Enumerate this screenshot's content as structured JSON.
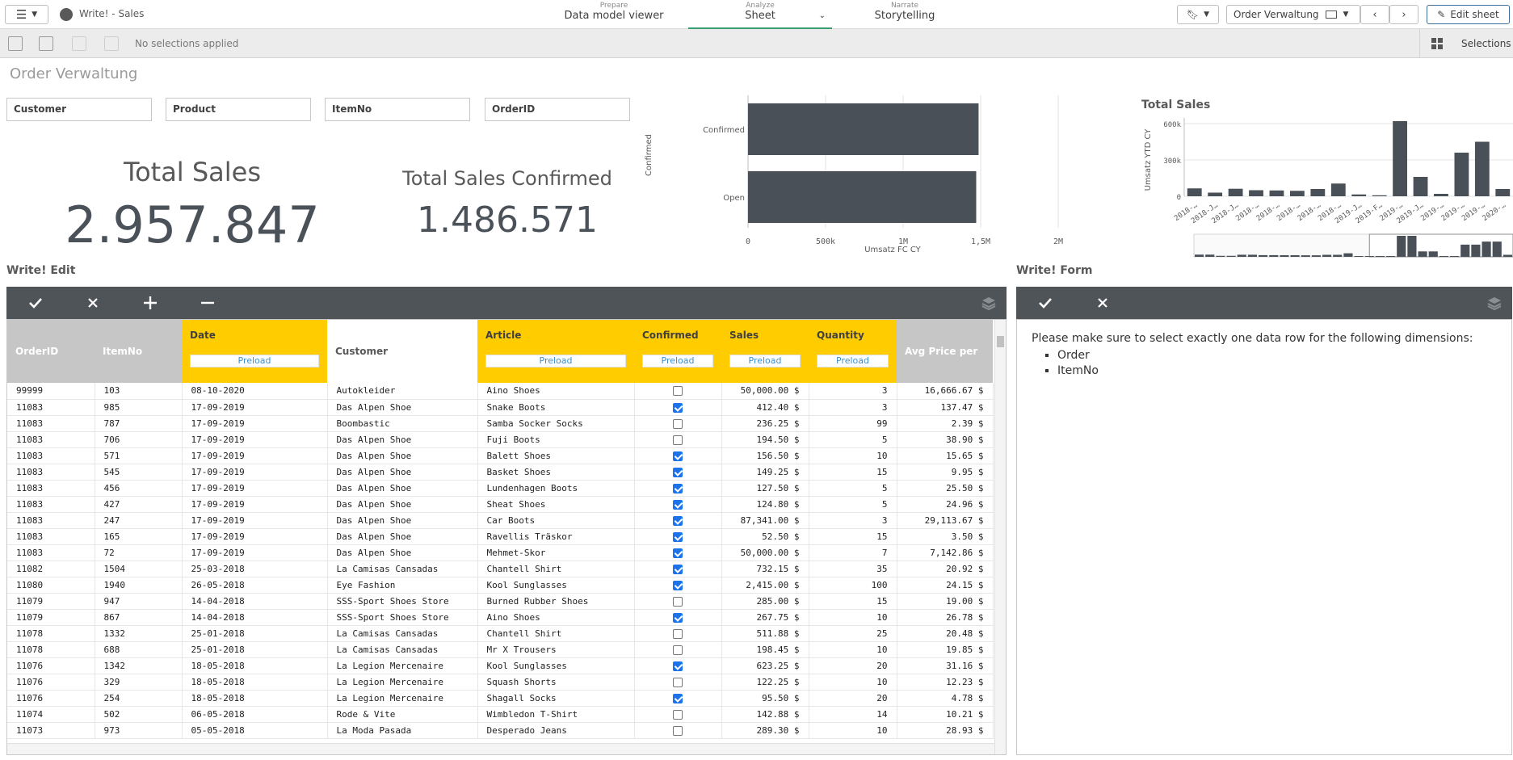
{
  "app": {
    "title": "Write! - Sales"
  },
  "nav": {
    "prepare": {
      "small": "Prepare",
      "label": "Data model viewer"
    },
    "analyze": {
      "small": "Analyze",
      "label": "Sheet"
    },
    "narrate": {
      "small": "Narrate",
      "label": "Storytelling"
    }
  },
  "header_right": {
    "sheet_name": "Order Verwaltung",
    "edit_label": "Edit sheet"
  },
  "selection_bar": {
    "status": "No selections applied",
    "selections_label": "Selections"
  },
  "sheet": {
    "title": "Order Verwaltung"
  },
  "filters": [
    "Customer",
    "Product",
    "ItemNo",
    "OrderID"
  ],
  "kpis": [
    {
      "title": "Total Sales",
      "value": "2.957.847"
    },
    {
      "title": "Total Sales Confirmed",
      "value": "1.486.571"
    }
  ],
  "charts": {
    "bar": {
      "ylabel": "Confirmed",
      "xlabel": "Umsatz FC CY",
      "xticks": [
        "0",
        "500k",
        "1M",
        "1,5M",
        "2M"
      ]
    },
    "total_sales": {
      "title": "Total Sales",
      "ylabel": "Umsatz YTD CY",
      "yticks": [
        "600k",
        "300k",
        "0"
      ],
      "xticks": [
        "2018-…",
        "2018-J…",
        "2018-J…",
        "2018-…",
        "2018-…",
        "2018-…",
        "2018-…",
        "2018-…",
        "2019-J…",
        "2019-F…",
        "2019-…",
        "2019-J…",
        "2019-…",
        "2019-…",
        "2019-…",
        "2020-…"
      ]
    }
  },
  "chart_data": [
    {
      "type": "bar",
      "orientation": "horizontal",
      "categories": [
        "Confirmed",
        "Open"
      ],
      "values": [
        1486571,
        1471276
      ],
      "ylabel": "Confirmed",
      "xlabel": "Umsatz FC CY",
      "xlim": [
        0,
        2000000
      ],
      "xticks": [
        "0",
        "500k",
        "1M",
        "1,5M",
        "2M"
      ],
      "grid": true,
      "color": "#4a5058"
    },
    {
      "type": "bar",
      "title": "Total Sales",
      "ylabel": "Umsatz YTD CY",
      "ylim": [
        0,
        620000
      ],
      "yticks": [
        "600k",
        "300k",
        "0"
      ],
      "categories": [
        "2018-…",
        "2018-J…",
        "2018-J…",
        "2018-…",
        "2018-…",
        "2018-…",
        "2018-…",
        "2018-…",
        "2019-J…",
        "2019-F…",
        "2019-…",
        "2019-J…",
        "2019-…",
        "2019-…",
        "2019-…",
        "2020-…"
      ],
      "values": [
        65000,
        30000,
        62000,
        50000,
        48000,
        45000,
        60000,
        105000,
        15000,
        8000,
        620000,
        160000,
        20000,
        360000,
        450000,
        60000
      ],
      "color": "#4a5058"
    }
  ],
  "write_edit": {
    "title": "Write! Edit",
    "tools": [
      "confirm-icon",
      "cancel-icon",
      "add-icon",
      "remove-icon"
    ],
    "columns": {
      "orderid": "OrderID",
      "itemno": "ItemNo",
      "date": "Date",
      "customer": "Customer",
      "article": "Article",
      "confirmed": "Confirmed",
      "sales": "Sales",
      "quantity": "Quantity",
      "avg": "Avg Price per"
    },
    "preload": "Preload",
    "rows": [
      [
        "99999",
        "103",
        "08-10-2020",
        "Autokleider",
        "Aino Shoes",
        false,
        "50,000.00 $",
        "3",
        "16,666.67 $"
      ],
      [
        "11083",
        "985",
        "17-09-2019",
        "Das Alpen Shoe",
        "Snake Boots",
        true,
        "412.40 $",
        "3",
        "137.47 $"
      ],
      [
        "11083",
        "787",
        "17-09-2019",
        "Boombastic",
        "Samba Socker Socks",
        false,
        "236.25 $",
        "99",
        "2.39 $"
      ],
      [
        "11083",
        "706",
        "17-09-2019",
        "Das Alpen Shoe",
        "Fuji Boots",
        false,
        "194.50 $",
        "5",
        "38.90 $"
      ],
      [
        "11083",
        "571",
        "17-09-2019",
        "Das Alpen Shoe",
        "Balett Shoes",
        true,
        "156.50 $",
        "10",
        "15.65 $"
      ],
      [
        "11083",
        "545",
        "17-09-2019",
        "Das Alpen Shoe",
        "Basket Shoes",
        true,
        "149.25 $",
        "15",
        "9.95 $"
      ],
      [
        "11083",
        "456",
        "17-09-2019",
        "Das Alpen Shoe",
        "Lundenhagen Boots",
        true,
        "127.50 $",
        "5",
        "25.50 $"
      ],
      [
        "11083",
        "427",
        "17-09-2019",
        "Das Alpen Shoe",
        "Sheat Shoes",
        true,
        "124.80 $",
        "5",
        "24.96 $"
      ],
      [
        "11083",
        "247",
        "17-09-2019",
        "Das Alpen Shoe",
        "Car Boots",
        true,
        "87,341.00 $",
        "3",
        "29,113.67 $"
      ],
      [
        "11083",
        "165",
        "17-09-2019",
        "Das Alpen Shoe",
        "Ravellis Träskor",
        true,
        "52.50 $",
        "15",
        "3.50 $"
      ],
      [
        "11083",
        "72",
        "17-09-2019",
        "Das Alpen Shoe",
        "Mehmet-Skor",
        true,
        "50,000.00 $",
        "7",
        "7,142.86 $"
      ],
      [
        "11082",
        "1504",
        "25-03-2018",
        "La Camisas Cansadas",
        "Chantell Shirt",
        true,
        "732.15 $",
        "35",
        "20.92 $"
      ],
      [
        "11080",
        "1940",
        "26-05-2018",
        "Eye Fashion",
        "Kool Sunglasses",
        true,
        "2,415.00 $",
        "100",
        "24.15 $"
      ],
      [
        "11079",
        "947",
        "14-04-2018",
        "SSS-Sport Shoes Store",
        "Burned Rubber Shoes",
        false,
        "285.00 $",
        "15",
        "19.00 $"
      ],
      [
        "11079",
        "867",
        "14-04-2018",
        "SSS-Sport Shoes Store",
        "Aino Shoes",
        true,
        "267.75 $",
        "10",
        "26.78 $"
      ],
      [
        "11078",
        "1332",
        "25-01-2018",
        "La Camisas Cansadas",
        "Chantell Shirt",
        false,
        "511.88 $",
        "25",
        "20.48 $"
      ],
      [
        "11078",
        "688",
        "25-01-2018",
        "La Camisas Cansadas",
        "Mr X Trousers",
        false,
        "198.45 $",
        "10",
        "19.85 $"
      ],
      [
        "11076",
        "1342",
        "18-05-2018",
        "La Legion Mercenaire",
        "Kool Sunglasses",
        true,
        "623.25 $",
        "20",
        "31.16 $"
      ],
      [
        "11076",
        "329",
        "18-05-2018",
        "La Legion Mercenaire",
        "Squash Shorts",
        false,
        "122.25 $",
        "10",
        "12.23 $"
      ],
      [
        "11076",
        "254",
        "18-05-2018",
        "La Legion Mercenaire",
        "Shagall Socks",
        true,
        "95.50 $",
        "20",
        "4.78 $"
      ],
      [
        "11074",
        "502",
        "06-05-2018",
        "Rode & Vite",
        "Wimbledon T-Shirt",
        false,
        "142.88 $",
        "14",
        "10.21 $"
      ],
      [
        "11073",
        "973",
        "05-05-2018",
        "La Moda Pasada",
        "Desperado Jeans",
        false,
        "289.30 $",
        "10",
        "28.93 $"
      ]
    ]
  },
  "write_form": {
    "title": "Write! Form",
    "message": "Please make sure to select exactly one data row for the following dimensions:",
    "items": [
      "Order",
      "ItemNo"
    ]
  }
}
